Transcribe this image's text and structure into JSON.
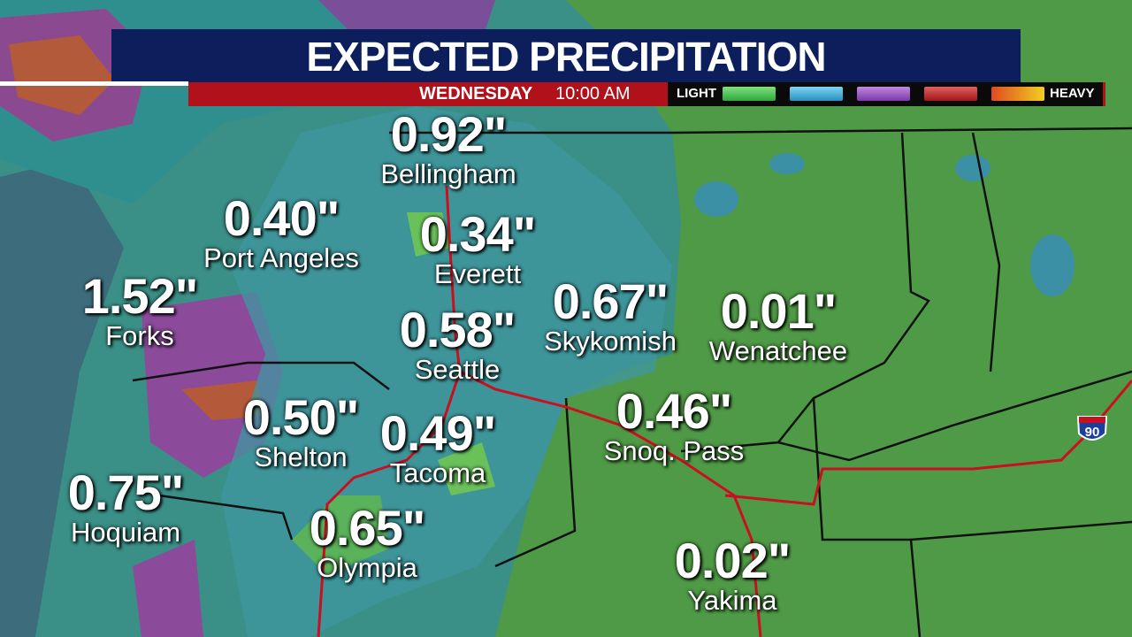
{
  "header": {
    "title": "EXPECTED PRECIPITATION",
    "day": "WEDNESDAY",
    "time": "10:00 AM"
  },
  "legend": {
    "low": "LIGHT",
    "high": "HEAVY"
  },
  "highway": "90",
  "cities": [
    {
      "amount": "0.92\"",
      "name": "Bellingham"
    },
    {
      "amount": "0.40\"",
      "name": "Port Angeles"
    },
    {
      "amount": "0.34\"",
      "name": "Everett"
    },
    {
      "amount": "1.52\"",
      "name": "Forks"
    },
    {
      "amount": "0.58\"",
      "name": "Seattle"
    },
    {
      "amount": "0.67\"",
      "name": "Skykomish"
    },
    {
      "amount": "0.01\"",
      "name": "Wenatchee"
    },
    {
      "amount": "0.50\"",
      "name": "Shelton"
    },
    {
      "amount": "0.49\"",
      "name": "Tacoma"
    },
    {
      "amount": "0.46\"",
      "name": "Snoq. Pass"
    },
    {
      "amount": "0.75\"",
      "name": "Hoquiam"
    },
    {
      "amount": "0.65\"",
      "name": "Olympia"
    },
    {
      "amount": "0.02\"",
      "name": "Yakima"
    }
  ]
}
